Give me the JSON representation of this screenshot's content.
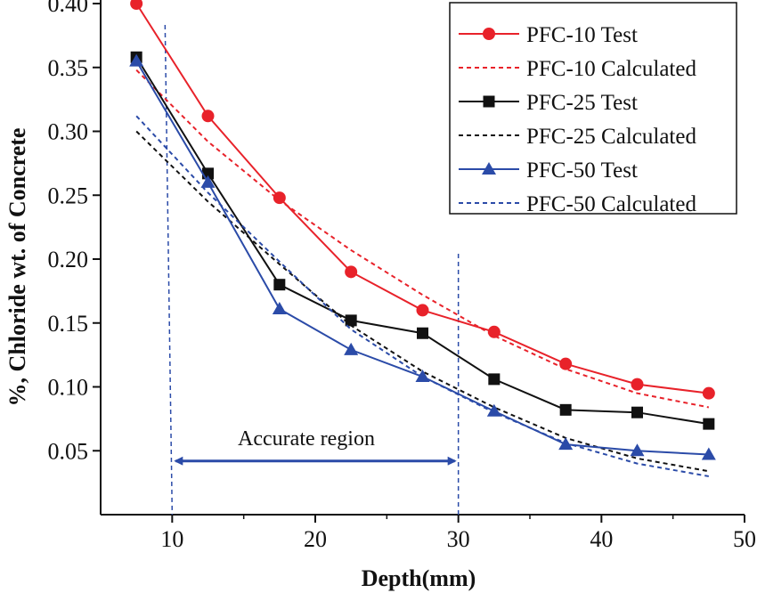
{
  "chart_data": {
    "type": "line",
    "xlabel": "Depth(mm)",
    "ylabel": "%, Chloride wt. of Concrete",
    "xlim": [
      5,
      50
    ],
    "ylim": [
      0.0,
      0.4
    ],
    "x_ticks": [
      10,
      20,
      30,
      40,
      50
    ],
    "x_tick_labels": [
      "10",
      "20",
      "30",
      "40",
      "50"
    ],
    "y_ticks": [
      0.05,
      0.1,
      0.15,
      0.2,
      0.25,
      0.3,
      0.35,
      0.4
    ],
    "y_tick_labels": [
      "0.05",
      "0.10",
      "0.15",
      "0.20",
      "0.25",
      "0.30",
      "0.35",
      "0.40"
    ],
    "legend_position": "top-right",
    "series": [
      {
        "name": "PFC-10 Test",
        "kind": "test",
        "marker": "circle",
        "color": "#e8222a",
        "x": [
          7.5,
          12.5,
          17.5,
          22.5,
          27.5,
          32.5,
          37.5,
          42.5,
          47.5
        ],
        "y": [
          0.4,
          0.312,
          0.248,
          0.19,
          0.16,
          0.143,
          0.118,
          0.102,
          0.095
        ]
      },
      {
        "name": "PFC-10 Calculated",
        "kind": "calc",
        "color": "#e8222a",
        "x": [
          7.5,
          12.5,
          17.5,
          22.5,
          27.5,
          32.5,
          37.5,
          42.5,
          47.5
        ],
        "y": [
          0.348,
          0.292,
          0.246,
          0.207,
          0.172,
          0.14,
          0.114,
          0.095,
          0.084
        ]
      },
      {
        "name": "PFC-25 Test",
        "kind": "test",
        "marker": "square",
        "color": "#111111",
        "x": [
          7.5,
          12.5,
          17.5,
          22.5,
          27.5,
          32.5,
          37.5,
          42.5,
          47.5
        ],
        "y": [
          0.358,
          0.267,
          0.18,
          0.152,
          0.142,
          0.106,
          0.082,
          0.08,
          0.071
        ]
      },
      {
        "name": "PFC-25 Calculated",
        "kind": "calc",
        "color": "#111111",
        "x": [
          7.5,
          12.5,
          17.5,
          22.5,
          27.5,
          32.5,
          37.5,
          42.5,
          47.5
        ],
        "y": [
          0.3,
          0.245,
          0.196,
          0.148,
          0.112,
          0.084,
          0.06,
          0.044,
          0.034
        ]
      },
      {
        "name": "PFC-50 Test",
        "kind": "test",
        "marker": "triangle",
        "color": "#2b4ba8",
        "x": [
          7.5,
          12.5,
          17.5,
          22.5,
          27.5,
          32.5,
          37.5,
          42.5,
          47.5
        ],
        "y": [
          0.355,
          0.26,
          0.161,
          0.129,
          0.108,
          0.081,
          0.055,
          0.05,
          0.047
        ]
      },
      {
        "name": "PFC-50 Calculated",
        "kind": "calc",
        "color": "#2b4ba8",
        "x": [
          7.5,
          12.5,
          17.5,
          22.5,
          27.5,
          32.5,
          37.5,
          42.5,
          47.5
        ],
        "y": [
          0.312,
          0.252,
          0.198,
          0.145,
          0.108,
          0.08,
          0.056,
          0.04,
          0.03
        ]
      }
    ],
    "annotations": {
      "region_label": "Accurate region",
      "region_x": [
        10,
        30
      ],
      "region_arrow_y": 0.042,
      "guide_color": "#2b4ba8"
    }
  }
}
